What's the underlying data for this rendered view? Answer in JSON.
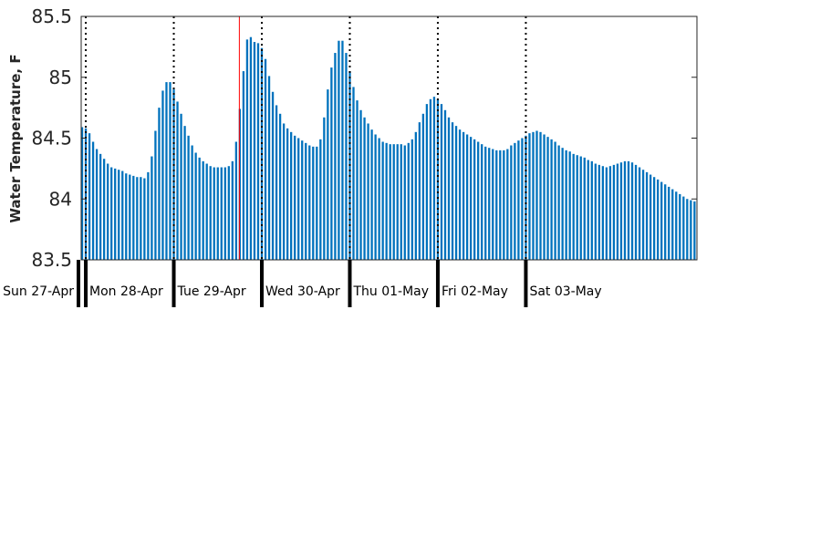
{
  "chart_data": {
    "type": "bar",
    "ylabel": "Water Temperature, F",
    "xlabel": "",
    "title": "",
    "ylim": [
      83.5,
      85.5
    ],
    "yticks": [
      83.5,
      84,
      84.5,
      85,
      85.5
    ],
    "ytick_labels": [
      "83.5",
      "84",
      "84.5",
      "85",
      "85.5"
    ],
    "grid": false,
    "bar_color": "#0072bd",
    "marker_color": "#ff0000",
    "marker_hour": 44,
    "start": "Sun 27-Apr 22:00",
    "interval_hours": 1,
    "day_boundaries": [
      "Mon 28-Apr 00:00",
      "Tue 29-Apr 00:00",
      "Wed 30-Apr 00:00",
      "Thu 01-May 00:00",
      "Fri 02-May 00:00",
      "Sat 03-May 00:00"
    ],
    "day_labels": [
      "Sun 27-Apr",
      "Mon 28-Apr",
      "Tue 29-Apr",
      "Wed 30-Apr",
      "Thu 01-May",
      "Fri 02-May",
      "Sat 03-May"
    ],
    "values": [
      84.55,
      84.59,
      84.58,
      84.54,
      84.47,
      84.41,
      84.37,
      84.33,
      84.29,
      84.26,
      84.25,
      84.24,
      84.23,
      84.21,
      84.2,
      84.19,
      84.18,
      84.18,
      84.17,
      84.22,
      84.35,
      84.56,
      84.75,
      84.89,
      84.96,
      84.96,
      84.9,
      84.8,
      84.7,
      84.6,
      84.52,
      84.44,
      84.38,
      84.34,
      84.31,
      84.29,
      84.27,
      84.26,
      84.26,
      84.26,
      84.26,
      84.27,
      84.31,
      84.47,
      84.74,
      85.05,
      85.31,
      85.33,
      85.29,
      85.28,
      85.24,
      85.15,
      85.01,
      84.88,
      84.77,
      84.7,
      84.62,
      84.58,
      84.55,
      84.52,
      84.5,
      84.48,
      84.46,
      84.44,
      84.43,
      84.43,
      84.49,
      84.67,
      84.9,
      85.08,
      85.2,
      85.3,
      85.3,
      85.2,
      85.05,
      84.92,
      84.81,
      84.73,
      84.67,
      84.62,
      84.57,
      84.53,
      84.5,
      84.47,
      84.46,
      84.45,
      84.45,
      84.45,
      84.45,
      84.44,
      84.46,
      84.49,
      84.55,
      84.63,
      84.7,
      84.78,
      84.82,
      84.84,
      84.82,
      84.78,
      84.73,
      84.67,
      84.63,
      84.6,
      84.57,
      84.55,
      84.53,
      84.51,
      84.49,
      84.47,
      84.45,
      84.43,
      84.42,
      84.41,
      84.4,
      84.4,
      84.4,
      84.41,
      84.44,
      84.46,
      84.48,
      84.5,
      84.52,
      84.54,
      84.55,
      84.56,
      84.55,
      84.53,
      84.51,
      84.49,
      84.47,
      84.44,
      84.42,
      84.4,
      84.39,
      84.37,
      84.36,
      84.35,
      84.34,
      84.32,
      84.31,
      84.29,
      84.28,
      84.27,
      84.26,
      84.27,
      84.28,
      84.29,
      84.3,
      84.31,
      84.31,
      84.3,
      84.28,
      84.26,
      84.24,
      84.22,
      84.2,
      84.18,
      84.16,
      84.14,
      84.12,
      84.1,
      84.08,
      84.06,
      84.04,
      84.02,
      84.0,
      83.99,
      83.98,
      83.98,
      83.97,
      83.96,
      83.95,
      83.94,
      83.93
    ]
  }
}
